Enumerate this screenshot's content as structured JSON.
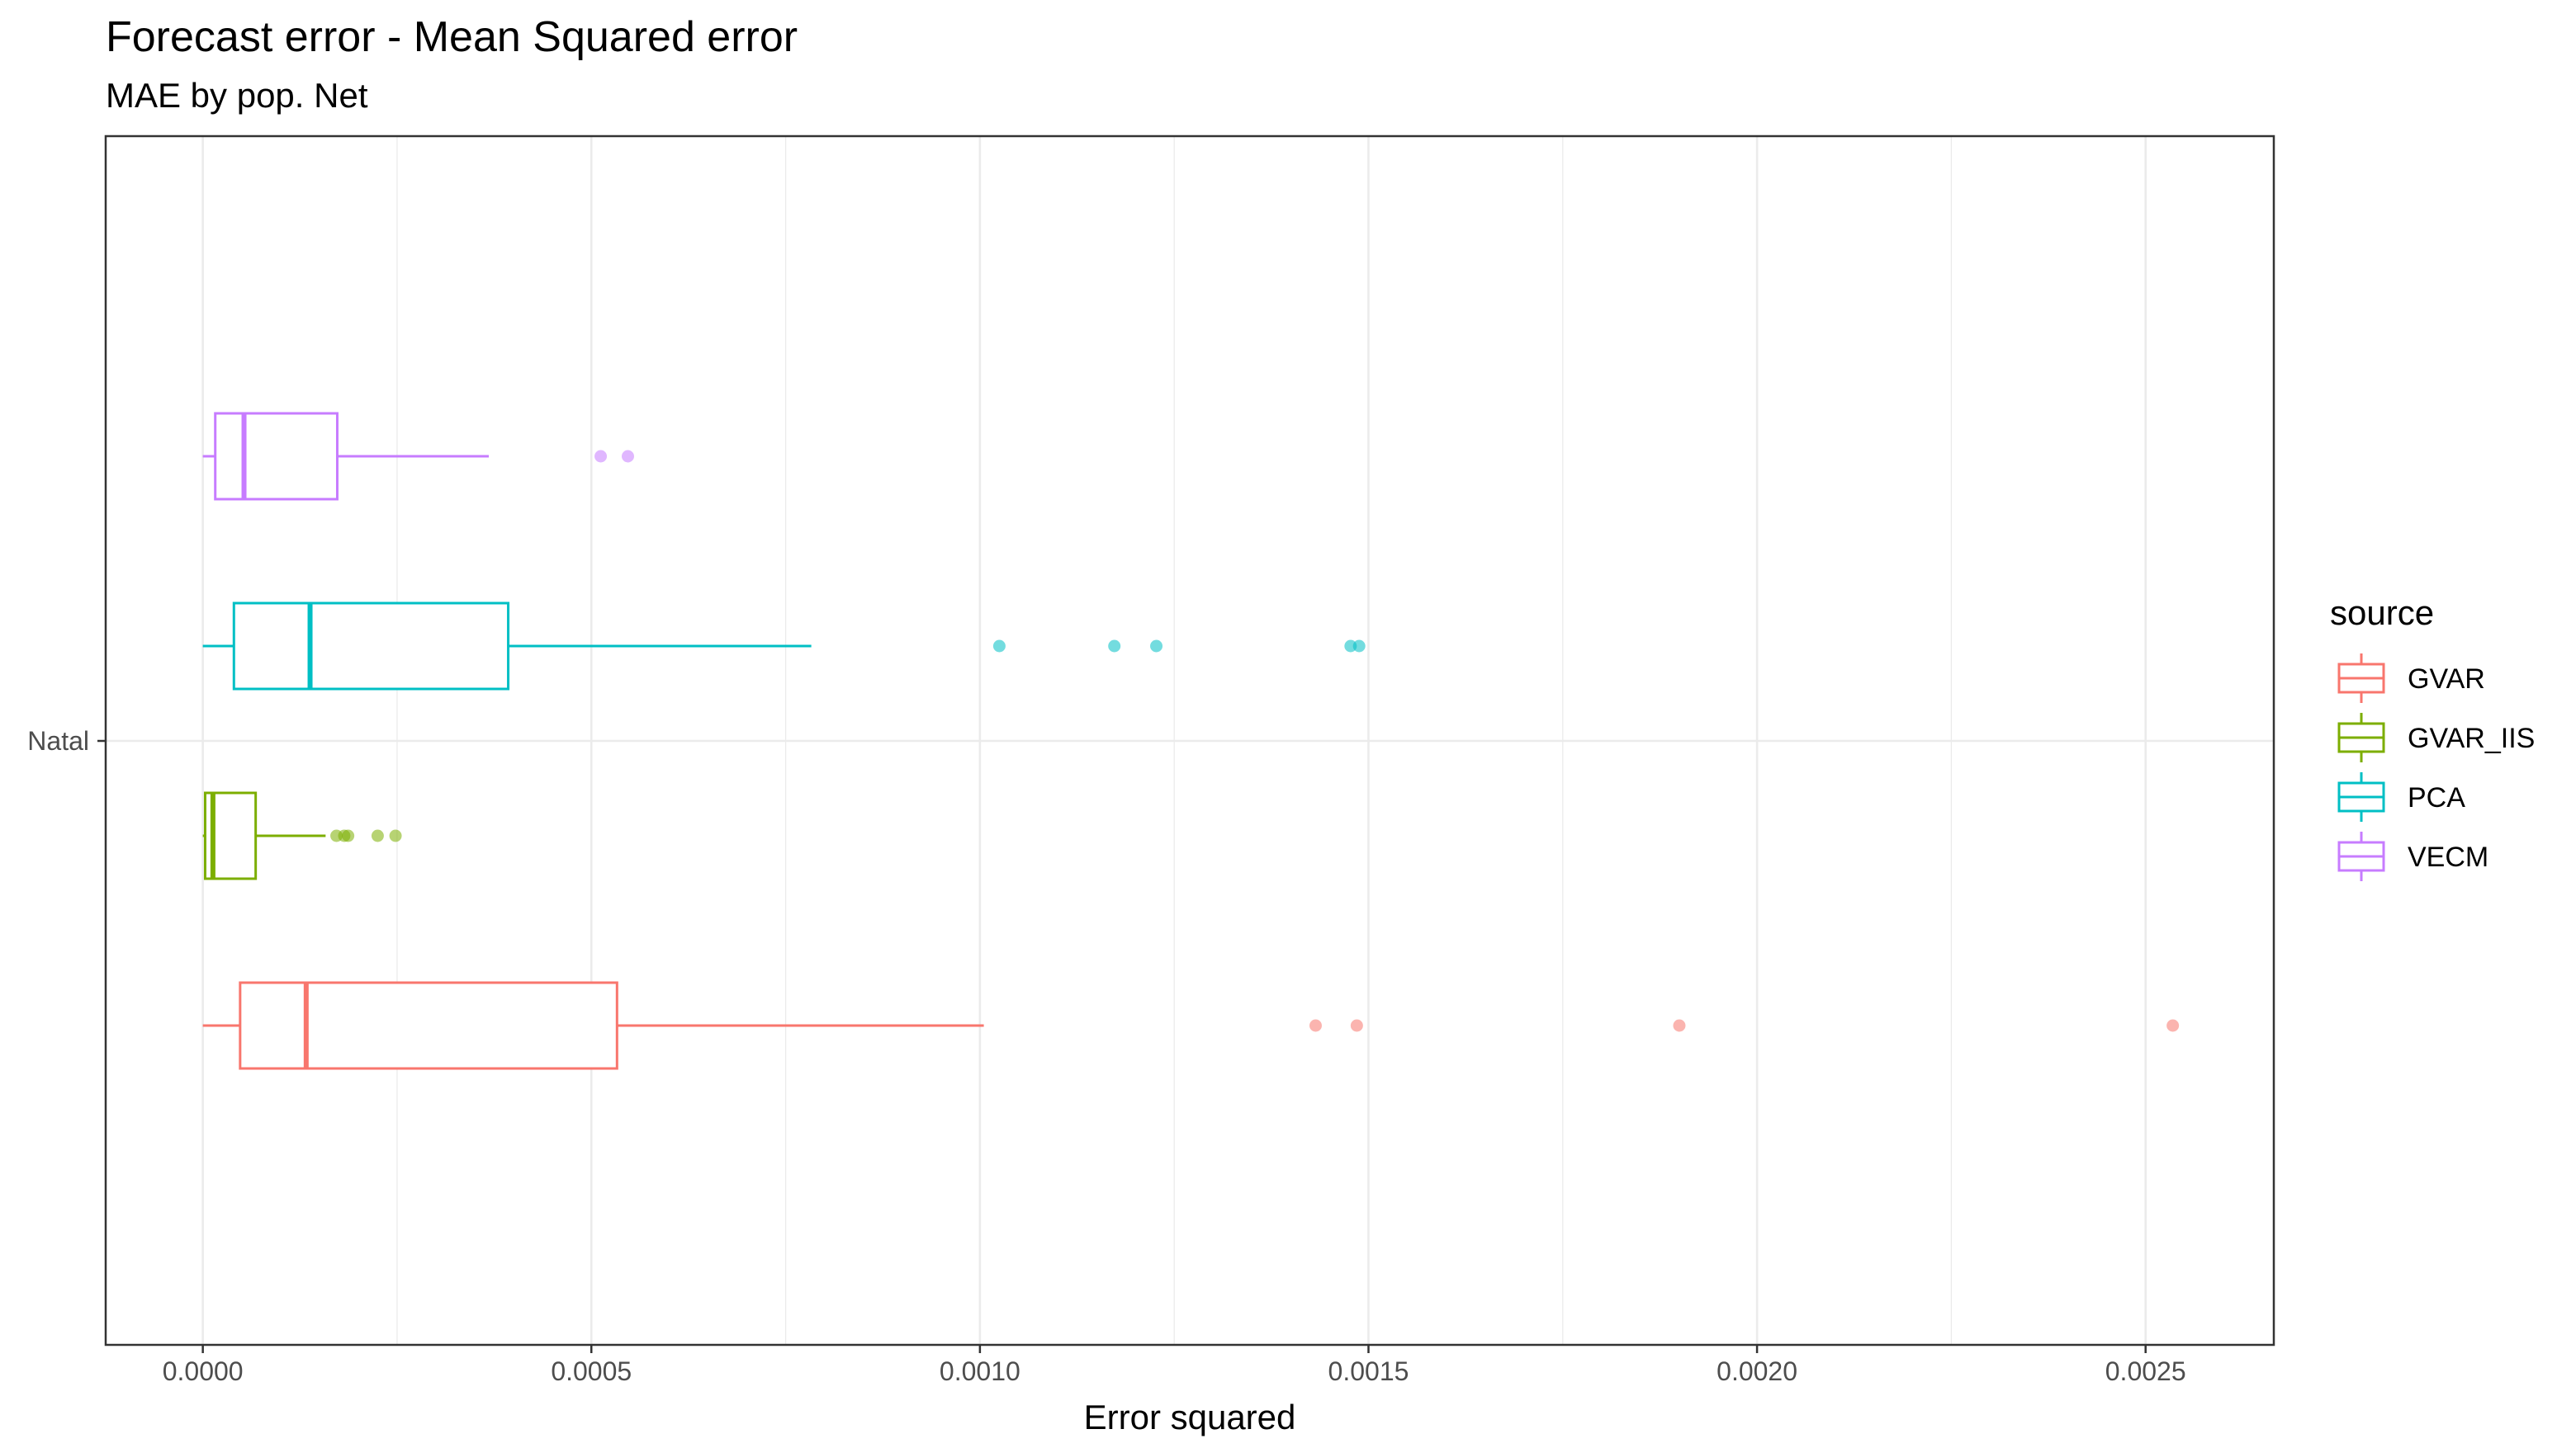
{
  "chart_data": {
    "type": "boxplot",
    "orientation": "horizontal",
    "title": "Forecast error - Mean Squared error",
    "subtitle": "MAE by pop. Net",
    "xlabel": "Error squared",
    "ylabel": "",
    "xlim": [
      -0.000125,
      0.002665
    ],
    "x_ticks": [
      0,
      0.0005,
      0.001,
      0.0015,
      0.002,
      0.0025
    ],
    "x_tick_labels": [
      "0.0000",
      "0.0005",
      "0.0010",
      "0.0015",
      "0.0020",
      "0.0025"
    ],
    "categories": [
      "Natal"
    ],
    "grid": true,
    "legend": {
      "title": "source",
      "position": "right"
    },
    "series": [
      {
        "name": "GVAR",
        "color": "#F8766D",
        "whisker_low": 0.0,
        "q1": 4.8e-05,
        "median": 0.000133,
        "q3": 0.000533,
        "whisker_high": 0.001005,
        "outliers": [
          0.001432,
          0.001485,
          0.0019,
          0.002535
        ]
      },
      {
        "name": "GVAR_IIS",
        "color": "#7CAE00",
        "whisker_low": 0.0,
        "q1": 3e-06,
        "median": 1.3e-05,
        "q3": 6.8e-05,
        "whisker_high": 0.000158,
        "outliers": [
          0.000172,
          0.000182,
          0.000187,
          0.000225,
          0.000248
        ]
      },
      {
        "name": "PCA",
        "color": "#00BFC4",
        "whisker_low": 0.0,
        "q1": 4e-05,
        "median": 0.000138,
        "q3": 0.000393,
        "whisker_high": 0.000783,
        "outliers": [
          0.001025,
          0.001173,
          0.001227,
          0.001477,
          0.001488
        ]
      },
      {
        "name": "VECM",
        "color": "#C77CFF",
        "whisker_low": 0.0,
        "q1": 1.6e-05,
        "median": 5.3e-05,
        "q3": 0.000173,
        "whisker_high": 0.000368,
        "outliers": [
          0.000512,
          0.000547
        ]
      }
    ]
  }
}
